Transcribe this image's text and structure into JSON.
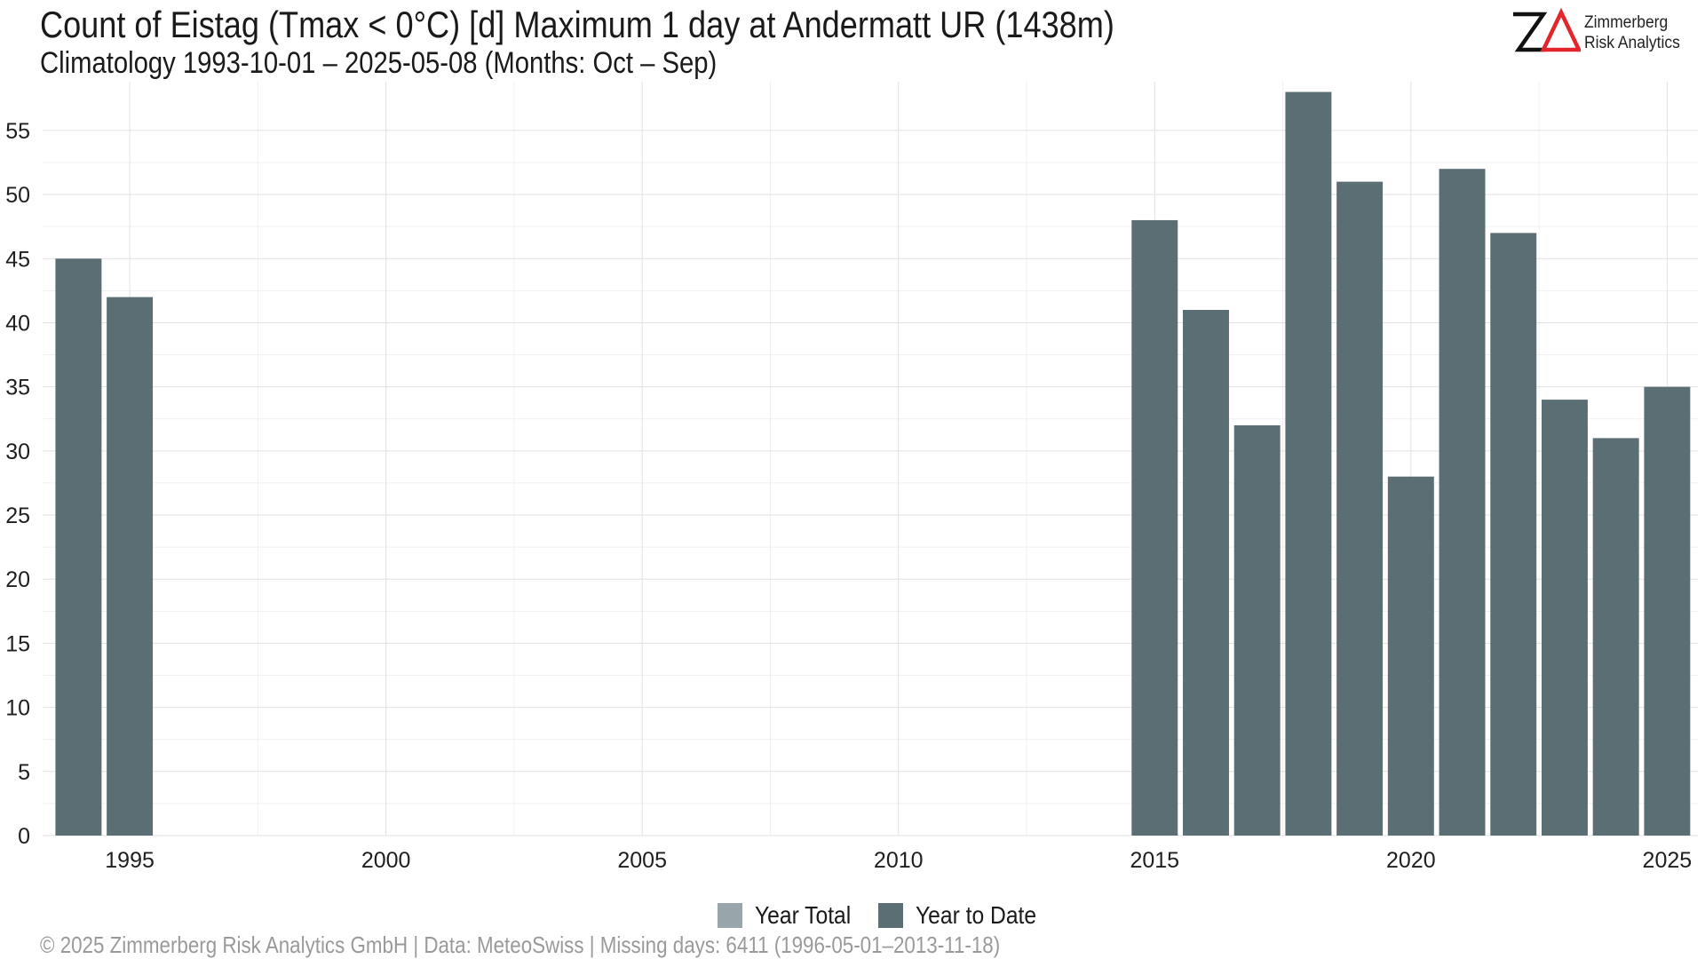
{
  "chart_data": {
    "type": "bar",
    "title": "Count of Eistag (Tmax < 0°C) [d] Maximum 1 day at Andermatt  UR (1438m)",
    "subtitle": "Climatology 1993-10-01 – 2025-05-08 (Months: Oct – Sep)",
    "xlabel": "",
    "ylabel": "",
    "xlim": [
      1993.3,
      2025.6
    ],
    "ylim": [
      0,
      58.8
    ],
    "x_ticks": [
      1995,
      2000,
      2005,
      2010,
      2015,
      2020,
      2025
    ],
    "y_ticks": [
      0,
      5,
      10,
      15,
      20,
      25,
      30,
      35,
      40,
      45,
      50,
      55
    ],
    "grid": true,
    "legend_position": "bottom",
    "series": [
      {
        "name": "Year Total",
        "color": "#98a6ab",
        "x": [],
        "values": []
      },
      {
        "name": "Year to Date",
        "color": "#5a6e74",
        "x": [
          1994,
          1995,
          2015,
          2016,
          2017,
          2018,
          2019,
          2020,
          2021,
          2022,
          2023,
          2024,
          2025
        ],
        "values": [
          45,
          42,
          48,
          41,
          32,
          58,
          51,
          28,
          52,
          47,
          34,
          31,
          35
        ]
      }
    ]
  },
  "legend": {
    "items": [
      {
        "label": "Year Total",
        "color": "#98a6ab"
      },
      {
        "label": "Year to Date",
        "color": "#5a6e74"
      }
    ]
  },
  "logo": {
    "mark": "ZΔ",
    "line1": "Zimmerberg",
    "line2": "Risk Analytics",
    "mark_color": "#111111",
    "accent_color": "#e3262b"
  },
  "footer": {
    "text": "©  2025 Zimmerberg Risk Analytics GmbH | Data: MeteoSwiss | Missing days: 6411 (1996-05-01–2013-11-18)"
  }
}
